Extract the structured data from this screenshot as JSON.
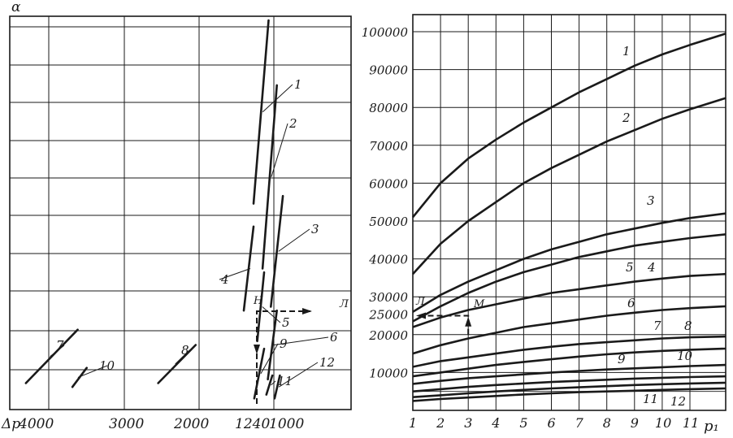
{
  "colors": {
    "ink": "#1a1a1a",
    "paper": "#ffffff"
  },
  "chart_data": [
    {
      "type": "line",
      "panel": "left",
      "ylabel": "α",
      "xlabel": "Δp",
      "x_ticks": [
        "4000",
        "3000",
        "2000",
        "1240",
        "1000"
      ],
      "x_axis": "reversed",
      "grid": true,
      "annotations": [
        "Н",
        "Л"
      ],
      "series": [
        {
          "name": "1",
          "points": [
            [
              1270,
              0.52
            ],
            [
              1070,
              1.0
            ]
          ]
        },
        {
          "name": "2",
          "points": [
            [
              1150,
              0.35
            ],
            [
              960,
              0.83
            ]
          ]
        },
        {
          "name": "3",
          "points": [
            [
              1040,
              0.25
            ],
            [
              880,
              0.54
            ]
          ]
        },
        {
          "name": "4",
          "points": [
            [
              1400,
              0.24
            ],
            [
              1270,
              0.46
            ]
          ]
        },
        {
          "name": "5",
          "points": [
            [
              1220,
              0.16
            ],
            [
              1130,
              0.34
            ]
          ]
        },
        {
          "name": "6",
          "points": [
            [
              1080,
              0.06
            ],
            [
              960,
              0.24
            ]
          ]
        },
        {
          "name": "7",
          "points": [
            [
              4300,
              0.05
            ],
            [
              3610,
              0.19
            ]
          ]
        },
        {
          "name": "8",
          "points": [
            [
              2540,
              0.05
            ],
            [
              2040,
              0.15
            ]
          ]
        },
        {
          "name": "9",
          "points": [
            [
              1260,
              0.01
            ],
            [
              1130,
              0.14
            ]
          ]
        },
        {
          "name": "10",
          "points": [
            [
              3680,
              0.04
            ],
            [
              3490,
              0.09
            ]
          ]
        },
        {
          "name": "11",
          "points": [
            [
              1100,
              0.02
            ],
            [
              1020,
              0.07
            ]
          ]
        },
        {
          "name": "12",
          "points": [
            [
              990,
              0.01
            ],
            [
              920,
              0.07
            ]
          ]
        }
      ]
    },
    {
      "type": "line",
      "panel": "right",
      "xlabel": "p₁",
      "x_ticks": [
        "1",
        "2",
        "3",
        "4",
        "5",
        "6",
        "7",
        "8",
        "9",
        "10",
        "11"
      ],
      "y_ticks": [
        "10000",
        "20000",
        "25000",
        "30000",
        "40000",
        "50000",
        "60000",
        "70000",
        "80000",
        "90000",
        "100000"
      ],
      "xlim": [
        1,
        12.3
      ],
      "ylim": [
        0,
        102000
      ],
      "grid": true,
      "annotations": [
        "Л",
        "М"
      ],
      "series": [
        {
          "name": "1",
          "points": [
            [
              1,
              51000
            ],
            [
              2,
              60000
            ],
            [
              3,
              66500
            ],
            [
              4,
              71500
            ],
            [
              5,
              76000
            ],
            [
              6,
              80000
            ],
            [
              7,
              84000
            ],
            [
              8,
              87500
            ],
            [
              9,
              91000
            ],
            [
              10,
              94000
            ],
            [
              11,
              96500
            ],
            [
              12.3,
              99500
            ]
          ]
        },
        {
          "name": "2",
          "points": [
            [
              1,
              36000
            ],
            [
              2,
              44000
            ],
            [
              3,
              50000
            ],
            [
              4,
              55000
            ],
            [
              5,
              60000
            ],
            [
              6,
              64000
            ],
            [
              7,
              67500
            ],
            [
              8,
              71000
            ],
            [
              9,
              74000
            ],
            [
              10,
              77000
            ],
            [
              11,
              79500
            ],
            [
              12.3,
              82500
            ]
          ]
        },
        {
          "name": "3",
          "points": [
            [
              1,
              26000
            ],
            [
              2,
              30500
            ],
            [
              3,
              34000
            ],
            [
              4,
              37000
            ],
            [
              5,
              40000
            ],
            [
              6,
              42500
            ],
            [
              7,
              44500
            ],
            [
              8,
              46500
            ],
            [
              9,
              48000
            ],
            [
              10,
              49500
            ],
            [
              11,
              50800
            ],
            [
              12.3,
              52000
            ]
          ]
        },
        {
          "name": "4",
          "points": [
            [
              1,
              23500
            ],
            [
              2,
              27500
            ],
            [
              3,
              31000
            ],
            [
              4,
              34000
            ],
            [
              5,
              36500
            ],
            [
              6,
              38500
            ],
            [
              7,
              40500
            ],
            [
              8,
              42000
            ],
            [
              9,
              43500
            ],
            [
              10,
              44500
            ],
            [
              11,
              45500
            ],
            [
              12.3,
              46500
            ]
          ]
        },
        {
          "name": "5",
          "points": [
            [
              1,
              22000
            ],
            [
              2,
              24500
            ],
            [
              3,
              26500
            ],
            [
              4,
              28000
            ],
            [
              5,
              29500
            ],
            [
              6,
              31000
            ],
            [
              7,
              32000
            ],
            [
              8,
              33000
            ],
            [
              9,
              34000
            ],
            [
              10,
              34800
            ],
            [
              11,
              35500
            ],
            [
              12.3,
              36000
            ]
          ]
        },
        {
          "name": "6",
          "points": [
            [
              1,
              15000
            ],
            [
              2,
              17200
            ],
            [
              3,
              19000
            ],
            [
              4,
              20500
            ],
            [
              5,
              22000
            ],
            [
              6,
              23000
            ],
            [
              7,
              24000
            ],
            [
              8,
              25000
            ],
            [
              9,
              25800
            ],
            [
              10,
              26500
            ],
            [
              11,
              27000
            ],
            [
              12.3,
              27500
            ]
          ]
        },
        {
          "name": "7",
          "points": [
            [
              1,
              11500
            ],
            [
              2,
              13000
            ],
            [
              3,
              14000
            ],
            [
              4,
              15000
            ],
            [
              5,
              16000
            ],
            [
              6,
              16800
            ],
            [
              7,
              17500
            ],
            [
              8,
              18000
            ],
            [
              9,
              18500
            ],
            [
              10,
              19000
            ],
            [
              11,
              19300
            ],
            [
              12.3,
              19500
            ]
          ]
        },
        {
          "name": "8",
          "points": [
            [
              1,
              9000
            ],
            [
              2,
              10000
            ],
            [
              3,
              11000
            ],
            [
              4,
              12000
            ],
            [
              5,
              12800
            ],
            [
              6,
              13500
            ],
            [
              7,
              14200
            ],
            [
              8,
              14800
            ],
            [
              9,
              15300
            ],
            [
              10,
              15700
            ],
            [
              11,
              16000
            ],
            [
              12.3,
              16300
            ]
          ]
        },
        {
          "name": "9",
          "points": [
            [
              1,
              7000
            ],
            [
              2,
              7800
            ],
            [
              3,
              8500
            ],
            [
              4,
              9000
            ],
            [
              5,
              9500
            ],
            [
              6,
              10000
            ],
            [
              7,
              10400
            ],
            [
              8,
              10800
            ],
            [
              9,
              11100
            ],
            [
              10,
              11400
            ],
            [
              11,
              11700
            ],
            [
              12.3,
              12000
            ]
          ]
        },
        {
          "name": "10",
          "points": [
            [
              1,
              5000
            ],
            [
              2,
              5600
            ],
            [
              3,
              6200
            ],
            [
              4,
              6700
            ],
            [
              5,
              7100
            ],
            [
              6,
              7500
            ],
            [
              7,
              7800
            ],
            [
              8,
              8100
            ],
            [
              9,
              8400
            ],
            [
              10,
              8600
            ],
            [
              11,
              8800
            ],
            [
              12.3,
              9000
            ]
          ]
        },
        {
          "name": "11",
          "points": [
            [
              1,
              3500
            ],
            [
              2,
              4000
            ],
            [
              3,
              4500
            ],
            [
              4,
              5000
            ],
            [
              5,
              5400
            ],
            [
              6,
              5800
            ],
            [
              7,
              6100
            ],
            [
              8,
              6400
            ],
            [
              9,
              6700
            ],
            [
              10,
              6900
            ],
            [
              11,
              7100
            ],
            [
              12.3,
              7300
            ]
          ]
        },
        {
          "name": "12",
          "points": [
            [
              1,
              2500
            ],
            [
              2,
              3000
            ],
            [
              3,
              3400
            ],
            [
              4,
              3800
            ],
            [
              5,
              4200
            ],
            [
              6,
              4500
            ],
            [
              7,
              4800
            ],
            [
              8,
              5000
            ],
            [
              9,
              5200
            ],
            [
              10,
              5400
            ],
            [
              11,
              5600
            ],
            [
              12.3,
              5800
            ]
          ]
        }
      ]
    }
  ]
}
